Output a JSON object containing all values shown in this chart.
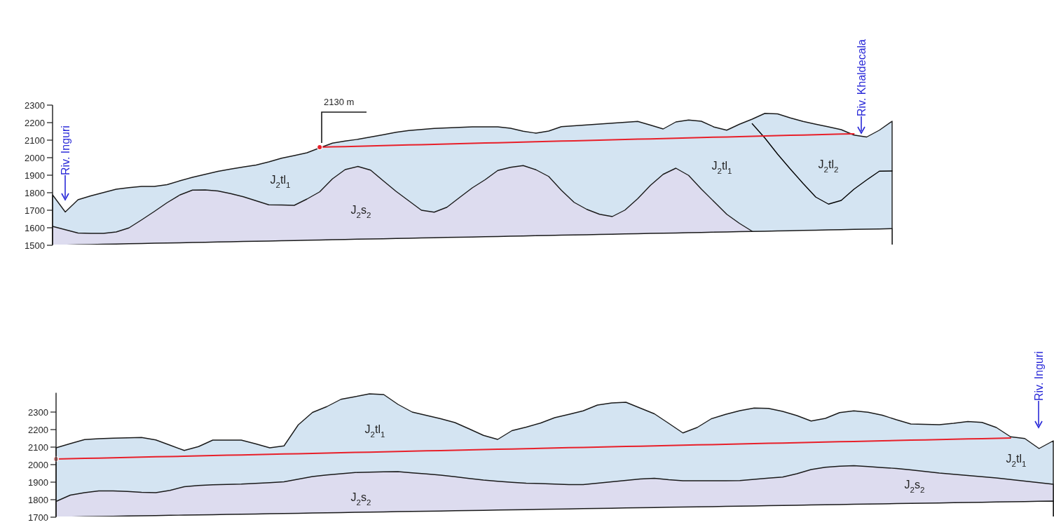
{
  "chart_data": [
    {
      "type": "area",
      "tick_labels": "y",
      "ylim": [
        1500,
        2300
      ],
      "yticks": [
        1500,
        1600,
        1700,
        1800,
        1900,
        2000,
        2100,
        2200,
        2300
      ],
      "categories": [
        null,
        null,
        null,
        null,
        null,
        null,
        null,
        null,
        null,
        null,
        null,
        null,
        null,
        null,
        null,
        null,
        null,
        null,
        null,
        null,
        null,
        null,
        null,
        null,
        null,
        null,
        null,
        null,
        null,
        null,
        null,
        null,
        null,
        null,
        null,
        null,
        null,
        null,
        null,
        null,
        null,
        null,
        null,
        null,
        null,
        null,
        null,
        null,
        null,
        null,
        null,
        null,
        null,
        null,
        null,
        null,
        null,
        null,
        null,
        null,
        null,
        null,
        null,
        null,
        null,
        null,
        null
      ],
      "annotations": [
        "2130 m",
        "Riv. Inguri",
        "Riv. Khaldecala",
        "J$_{2}$tl$_{1}$",
        "J$_{2}$s$_{2}$",
        "J$_{2}$tl$_{1}$",
        "J$_{2}$tl$_{2}$"
      ],
      "series": [
        {
          "color": "#d4e4f2",
          "values": [
            1788,
            1690,
            1760,
            1782,
            1801,
            1820,
            1829,
            1836,
            1836,
            1846,
            1868,
            1888,
            1905,
            1922,
            1935,
            1947,
            1958,
            1976,
            1997,
            2012,
            2028,
            2056,
            2083,
            2095,
            2105,
            2118,
            2131,
            2145,
            2155,
            2161,
            2167,
            2170,
            2173,
            2176,
            2176,
            2176,
            2168,
            2151,
            2140,
            2152,
            2177,
            2182,
            2187,
            2192,
            2197,
            2202,
            2207,
            2186,
            2164,
            2204,
            2215,
            2208,
            2175,
            2157,
            2191,
            2220,
            2253,
            2250,
            2227,
            2207,
            2191,
            2176,
            2160,
            2129,
            2118,
            2157,
            2208
          ]
        },
        {
          "color": "#dddcef",
          "values": [
            1608,
            1589,
            1570,
            1568,
            1568,
            1576,
            1599,
            1645,
            1693,
            1743,
            1787,
            1815,
            1816,
            1810,
            1795,
            1777,
            1754,
            1731,
            1730,
            1728,
            1764,
            1805,
            1879,
            1932,
            1950,
            1929,
            1868,
            1808,
            1754,
            1700,
            1689,
            1717,
            1773,
            1828,
            1874,
            1927,
            1945,
            1955,
            1931,
            1893,
            1814,
            1745,
            1705,
            1677,
            1664,
            1701,
            1766,
            1842,
            1905,
            1940,
            1899,
            1821,
            1749,
            1677,
            1625,
            1580,
            null,
            null,
            null,
            null,
            null,
            null,
            null,
            null,
            null,
            null,
            null
          ]
        },
        {
          "color": "#ffffff",
          "values": [
            1500,
            1501,
            1503,
            1504,
            1506,
            1507,
            1509,
            1510,
            1512,
            1513,
            1514,
            1516,
            1517,
            1519,
            1520,
            1522,
            1523,
            1524,
            1526,
            1527,
            1529,
            1530,
            1532,
            1533,
            1535,
            1536,
            1537,
            1539,
            1540,
            1542,
            1543,
            1545,
            1546,
            1547,
            1549,
            1550,
            1552,
            1553,
            1555,
            1556,
            1558,
            1559,
            1560,
            1562,
            1563,
            1565,
            1566,
            1568,
            1569,
            1570,
            1572,
            1573,
            1575,
            1576,
            1578,
            1579,
            1580,
            1582,
            1583,
            1585,
            1586,
            1588,
            1589,
            1591,
            1592,
            1593,
            1595
          ]
        },
        {
          "type": "line",
          "color": "#000000",
          "values": [
            null,
            null,
            null,
            null,
            null,
            null,
            null,
            null,
            null,
            null,
            null,
            null,
            null,
            null,
            null,
            null,
            null,
            null,
            null,
            null,
            null,
            null,
            null,
            null,
            null,
            null,
            null,
            null,
            null,
            null,
            null,
            null,
            null,
            null,
            null,
            null,
            null,
            null,
            null,
            null,
            null,
            null,
            null,
            null,
            null,
            null,
            null,
            null,
            null,
            null,
            null,
            null,
            null,
            null,
            null,
            2194,
            2112,
            2020,
            1935,
            1853,
            1775,
            1735,
            1756,
            1820,
            1873,
            1923,
            1924
          ]
        },
        {
          "type": "line",
          "color": "#e8202a",
          "values": [
            null,
            null,
            null,
            null,
            null,
            null,
            null,
            null,
            null,
            null,
            null,
            null,
            null,
            null,
            null,
            null,
            null,
            null,
            null,
            null,
            null,
            2060,
            2062,
            2063,
            2065,
            2067,
            2069,
            2071,
            2073,
            2074,
            2076,
            2078,
            2080,
            2082,
            2084,
            2085,
            2087,
            2089,
            2091,
            2093,
            2095,
            2096,
            2098,
            2100,
            2102,
            2104,
            2106,
            2107,
            2109,
            2111,
            2113,
            2115,
            2117,
            2118,
            2120,
            2122,
            2124,
            2126,
            2128,
            2129,
            2131,
            2133,
            2135,
            2136,
            null,
            null,
            null
          ]
        },
        {
          "type": "scatter",
          "color": "#e8202a",
          "marker": "circle",
          "values": [
            null,
            null,
            null,
            null,
            null,
            null,
            null,
            null,
            null,
            null,
            null,
            null,
            null,
            null,
            null,
            null,
            null,
            null,
            null,
            null,
            null,
            2060,
            null,
            null,
            null,
            null,
            null,
            null,
            null,
            null,
            null,
            null,
            null,
            null,
            null,
            null,
            null,
            null,
            null,
            null,
            null,
            null,
            null,
            null,
            null,
            null,
            null,
            null,
            null,
            null,
            null,
            null,
            null,
            null,
            null,
            null,
            null,
            null,
            null,
            null,
            null,
            null,
            null,
            null,
            null,
            null,
            null
          ]
        }
      ]
    },
    {
      "type": "area",
      "tick_labels": "y",
      "ylim": [
        1700,
        2410
      ],
      "yticks": [
        1700,
        1800,
        1900,
        2000,
        2100,
        2200,
        2300
      ],
      "categories": [
        null,
        null,
        null,
        null,
        null,
        null,
        null,
        null,
        null,
        null,
        null,
        null,
        null,
        null,
        null,
        null,
        null,
        null,
        null,
        null,
        null,
        null,
        null,
        null,
        null,
        null,
        null,
        null,
        null,
        null,
        null,
        null,
        null,
        null,
        null,
        null,
        null,
        null,
        null,
        null,
        null,
        null,
        null,
        null,
        null,
        null,
        null,
        null,
        null,
        null,
        null,
        null,
        null,
        null,
        null,
        null,
        null,
        null,
        null,
        null,
        null,
        null,
        null,
        null,
        null,
        null,
        null,
        null,
        null,
        null,
        null
      ],
      "annotations": [
        "Riv. Inguri",
        "J$_{2}$tl$_{1}$",
        "J$_{2}$s$_{2}$",
        "J$_{2}$tl$_{1}$",
        "J$_{2}$s$_{2}$"
      ],
      "series": [
        {
          "color": "#d4e4f2",
          "values": [
            2096,
            2120,
            2143,
            2148,
            2151,
            2153,
            2155,
            2141,
            2111,
            2081,
            2103,
            2140,
            2140,
            2140,
            2119,
            2096,
            2107,
            2227,
            2298,
            2331,
            2373,
            2388,
            2404,
            2400,
            2344,
            2300,
            2281,
            2262,
            2240,
            2204,
            2167,
            2144,
            2194,
            2214,
            2237,
            2268,
            2287,
            2307,
            2340,
            2352,
            2356,
            2323,
            2290,
            2236,
            2181,
            2212,
            2262,
            2287,
            2308,
            2323,
            2321,
            2304,
            2280,
            2249,
            2264,
            2297,
            2307,
            2299,
            2282,
            2256,
            2232,
            2230,
            2228,
            2236,
            2246,
            2241,
            2212,
            2159,
            2149,
            2092,
            2136
          ]
        },
        {
          "color": "#dddcef",
          "values": [
            1790,
            1826,
            1840,
            1850,
            1850,
            1847,
            1842,
            1840,
            1853,
            1874,
            1881,
            1885,
            1887,
            1889,
            1893,
            1897,
            1902,
            1917,
            1932,
            1941,
            1948,
            1955,
            1957,
            1959,
            1960,
            1953,
            1947,
            1940,
            1931,
            1921,
            1912,
            1905,
            1899,
            1894,
            1892,
            1889,
            1886,
            1886,
            1894,
            1902,
            1910,
            1918,
            1922,
            1914,
            1908,
            1908,
            1908,
            1908,
            1909,
            1916,
            1923,
            1929,
            1948,
            1972,
            1985,
            1991,
            1994,
            1989,
            1983,
            1978,
            1970,
            1961,
            1952,
            1945,
            1938,
            1931,
            1924,
            1915,
            1906,
            1897,
            1888
          ]
        },
        {
          "color": "#ffffff",
          "values": [
            1700,
            1701,
            1703,
            1704,
            1705,
            1707,
            1708,
            1709,
            1711,
            1712,
            1713,
            1714,
            1716,
            1717,
            1718,
            1720,
            1721,
            1722,
            1724,
            1725,
            1726,
            1728,
            1729,
            1730,
            1732,
            1733,
            1734,
            1735,
            1737,
            1738,
            1739,
            1741,
            1742,
            1743,
            1745,
            1746,
            1747,
            1749,
            1750,
            1751,
            1753,
            1754,
            1755,
            1757,
            1758,
            1759,
            1760,
            1762,
            1763,
            1764,
            1766,
            1767,
            1768,
            1770,
            1771,
            1772,
            1774,
            1775,
            1776,
            1778,
            1779,
            1780,
            1781,
            1783,
            1784,
            1785,
            1787,
            1788,
            1789,
            1791,
            1792
          ]
        },
        {
          "type": "line",
          "color": "#e8202a",
          "values": [
            2032,
            2034,
            2036,
            2037,
            2039,
            2041,
            2043,
            2045,
            2046,
            2048,
            2050,
            2052,
            2054,
            2055,
            2057,
            2059,
            2061,
            2062,
            2064,
            2066,
            2068,
            2070,
            2071,
            2073,
            2075,
            2077,
            2079,
            2080,
            2082,
            2084,
            2086,
            2088,
            2089,
            2091,
            2093,
            2095,
            2097,
            2098,
            2100,
            2102,
            2104,
            2105,
            2107,
            2109,
            2111,
            2113,
            2114,
            2116,
            2118,
            2120,
            2122,
            2123,
            2125,
            2127,
            2129,
            2131,
            2132,
            2134,
            2136,
            2138,
            2140,
            2141,
            2143,
            2145,
            2147,
            2148,
            2150,
            2152,
            null,
            null,
            null
          ]
        },
        {
          "type": "scatter",
          "color": "#d08080",
          "marker": "circle",
          "values": [
            2032,
            null,
            null,
            null,
            null,
            null,
            null,
            null,
            null,
            null,
            null,
            null,
            null,
            null,
            null,
            null,
            null,
            null,
            null,
            null,
            null,
            null,
            null,
            null,
            null,
            null,
            null,
            null,
            null,
            null,
            null,
            null,
            null,
            null,
            null,
            null,
            null,
            null,
            null,
            null,
            null,
            null,
            null,
            null,
            null,
            null,
            null,
            null,
            null,
            null,
            null,
            null,
            null,
            null,
            null,
            null,
            null,
            null,
            null,
            null,
            null,
            null,
            null,
            null,
            null,
            null,
            null,
            null,
            null,
            null,
            null
          ]
        }
      ]
    }
  ]
}
